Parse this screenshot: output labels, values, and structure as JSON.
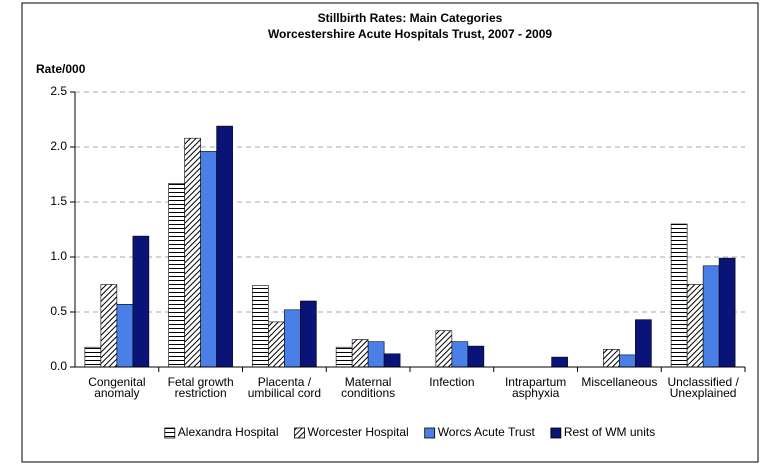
{
  "chart_data": {
    "type": "bar",
    "title": "Stillbirth Rates: Main Categories",
    "subtitle": "Worcestershire Acute Hospitals Trust, 2007 - 2009",
    "y_label": "Rate/000",
    "categories": [
      "Congenital\nanomaly",
      "Fetal growth\nrestriction",
      "Placenta /\numbilical cord",
      "Maternal\nconditions",
      "Infection",
      "Intrapartum\nasphyxia",
      "Miscellaneous",
      "Unclassified /\nUnexplained"
    ],
    "series": [
      {
        "name": "Alexandra Hospital",
        "color": "#000000",
        "pattern": "horizontal",
        "values": [
          0.18,
          1.67,
          0.74,
          0.18,
          0,
          0,
          0,
          1.3
        ]
      },
      {
        "name": "Worcester Hospital",
        "color": "#000000",
        "pattern": "diagonal",
        "values": [
          0.75,
          2.08,
          0.41,
          0.25,
          0.33,
          0,
          0.16,
          0.75
        ]
      },
      {
        "name": "Worcs Acute Trust",
        "color": "#4a7fe8",
        "pattern": "solid",
        "values": [
          0.57,
          1.96,
          0.52,
          0.23,
          0.23,
          0,
          0.11,
          0.92
        ]
      },
      {
        "name": "Rest of WM units",
        "color": "#0a1478",
        "pattern": "solid",
        "values": [
          1.19,
          2.19,
          0.6,
          0.12,
          0.19,
          0.09,
          0.43,
          0.99
        ]
      }
    ],
    "ylim": [
      0,
      2.5
    ],
    "yticks": [
      {
        "value": 0,
        "label": "0.0"
      },
      0.5,
      {
        "value": 1,
        "label": "1.0"
      },
      1.5,
      {
        "value": 2,
        "label": "2.0"
      },
      2.5
    ],
    "grid": true,
    "legend": "bottom"
  }
}
